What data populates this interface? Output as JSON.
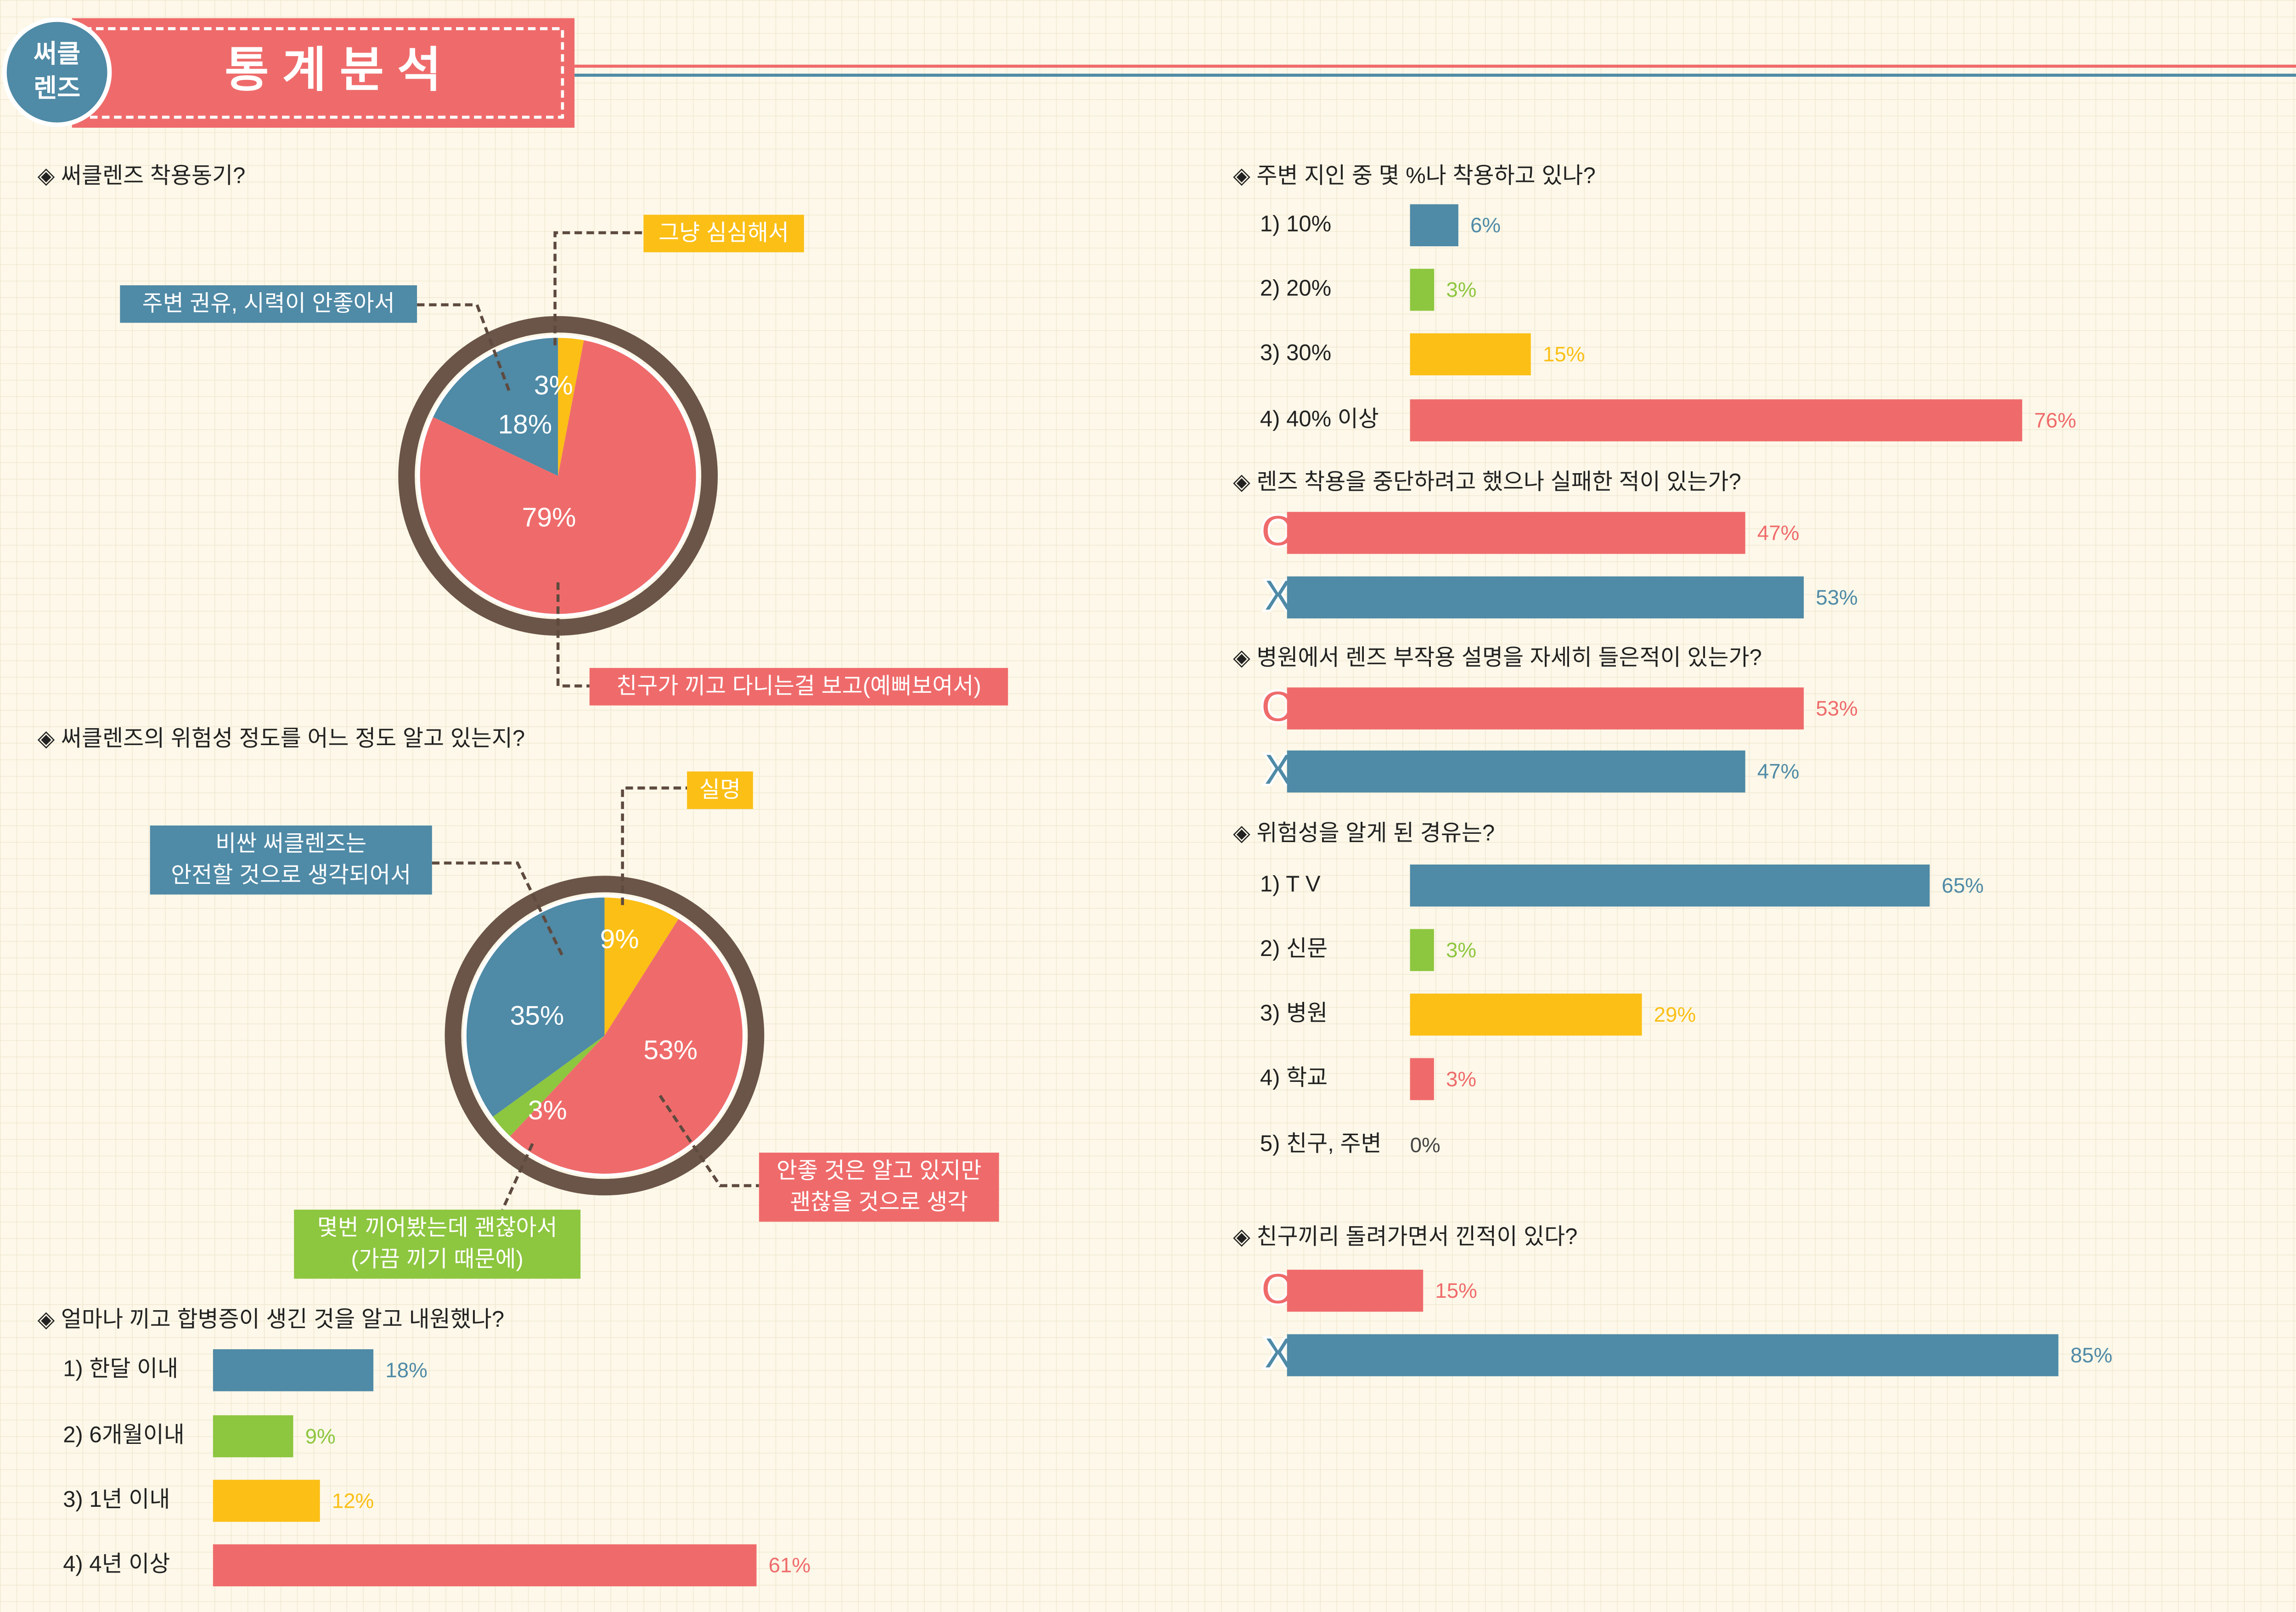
{
  "header": {
    "badge": [
      "써클",
      "렌즈"
    ],
    "title": "통 계 분 석"
  },
  "chart_data": [
    {
      "type": "pie",
      "title": "◈ 써클렌즈 착용동기?",
      "categories": [
        [
          "그냥 심심해서"
        ],
        [
          "친구가 끼고 다니는걸 보고(예뻐보여서)"
        ],
        [
          "주변 권유, 시력이 안좋아서"
        ]
      ],
      "values": [
        3,
        79,
        18
      ],
      "value_labels": [
        "3%",
        "79%",
        "18%"
      ],
      "colors": [
        "#fbbf16",
        "#ef6b6b",
        "#4f8aa6"
      ]
    },
    {
      "type": "pie",
      "title": "◈ 써클렌즈의 위험성 정도를 어느 정도 알고 있는지?",
      "categories": [
        [
          "실명"
        ],
        [
          "안좋 것은 알고 있지만",
          "괜찮을 것으로 생각"
        ],
        [
          "몇번 끼어봤는데 괜찮아서",
          "(가끔 끼기 때문에)"
        ],
        [
          "비싼 써클렌즈는",
          "안전할 것으로 생각되어서"
        ]
      ],
      "values": [
        9,
        53,
        3,
        35
      ],
      "value_labels": [
        "9%",
        "53%",
        "3%",
        "35%"
      ],
      "colors": [
        "#fbbf16",
        "#ef6b6b",
        "#8dc63f",
        "#4f8aa6"
      ]
    },
    {
      "type": "hbar",
      "title": "◈ 얼마나 끼고 합병증이 생긴 것을 알고 내원했나?",
      "categories": [
        "1) 한달 이내",
        "2) 6개월이내",
        "3) 1년 이내",
        "4) 4년 이상"
      ],
      "values": [
        18,
        9,
        12,
        61
      ],
      "value_labels": [
        "18%",
        "9%",
        "12%",
        "61%"
      ],
      "colors": [
        "#4f8aa6",
        "#8dc63f",
        "#fbbf16",
        "#ef6b6b"
      ]
    },
    {
      "type": "hbar",
      "title": "◈ 주변 지인 중 몇 %나 착용하고 있나?",
      "categories": [
        "1) 10%",
        "2) 20%",
        "3) 30%",
        "4) 40% 이상"
      ],
      "values": [
        6,
        3,
        15,
        76
      ],
      "value_labels": [
        "6%",
        "3%",
        "15%",
        "76%"
      ],
      "colors": [
        "#4f8aa6",
        "#8dc63f",
        "#fbbf16",
        "#ef6b6b"
      ]
    },
    {
      "type": "hbar",
      "title": "◈ 렌즈 착용을 중단하려고 했으나 실패한 적이 있는가?",
      "categories": [
        "O",
        "X"
      ],
      "values": [
        47,
        53
      ],
      "value_labels": [
        "47%",
        "53%"
      ],
      "colors": [
        "#ef6b6b",
        "#4f8aa6"
      ]
    },
    {
      "type": "hbar",
      "title": "◈ 병원에서 렌즈 부작용 설명을 자세히 들은적이 있는가?",
      "categories": [
        "O",
        "X"
      ],
      "values": [
        53,
        47
      ],
      "value_labels": [
        "53%",
        "47%"
      ],
      "colors": [
        "#ef6b6b",
        "#4f8aa6"
      ]
    },
    {
      "type": "hbar",
      "title": "◈ 위험성을 알게 된 경유는?",
      "categories": [
        "1) T V",
        "2) 신문",
        "3) 병원",
        "4) 학교",
        "5) 친구, 주변"
      ],
      "values": [
        65,
        3,
        29,
        3,
        0
      ],
      "value_labels": [
        "65%",
        "3%",
        "29%",
        "3%",
        "0%"
      ],
      "colors": [
        "#4f8aa6",
        "#8dc63f",
        "#fbbf16",
        "#ef6b6b",
        "#4f8aa6"
      ]
    },
    {
      "type": "hbar",
      "title": "◈ 친구끼리 돌려가면서 낀적이 있다?",
      "categories": [
        "O",
        "X"
      ],
      "values": [
        15,
        85
      ],
      "value_labels": [
        "15%",
        "85%"
      ],
      "colors": [
        "#ef6b6b",
        "#4f8aa6"
      ]
    }
  ]
}
